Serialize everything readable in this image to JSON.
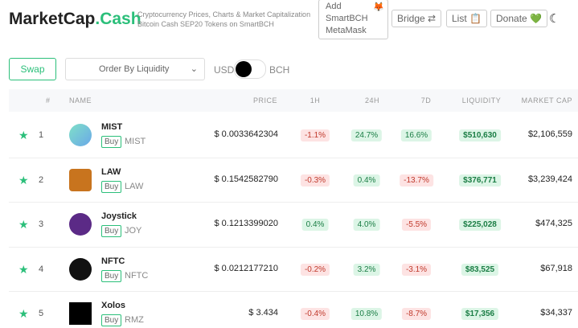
{
  "header": {
    "brand_main": "MarketCap",
    "brand_accent": ".Cash",
    "tagline_1": "Cryptocurrency Prices, Charts & Market Capitalization",
    "tagline_2": "Bitcoin Cash SEP20 Tokens on SmartBCH",
    "metamask": "Add SmartBCH MetaMask",
    "bridge": "Bridge",
    "list": "List",
    "donate": "Donate"
  },
  "toolbar": {
    "swap": "Swap",
    "order": "Order By Liquidity",
    "currency_left": "USD",
    "currency_right": "BCH"
  },
  "table": {
    "columns": [
      "#",
      "NAME",
      "PRICE",
      "1H",
      "24H",
      "7D",
      "LIQUIDITY",
      "MARKET CAP"
    ],
    "buy": "Buy",
    "rows": [
      {
        "rank": "1",
        "name": "MIST",
        "symbol": "MIST",
        "price": "$ 0.0033642304",
        "h1": "-1.1%",
        "h24": "24.7%",
        "d7": "16.6%",
        "liquidity": "$510,630",
        "market_cap": "$2,106,559"
      },
      {
        "rank": "2",
        "name": "LAW",
        "symbol": "LAW",
        "price": "$ 0.1542582790",
        "h1": "-0.3%",
        "h24": "0.4%",
        "d7": "-13.7%",
        "liquidity": "$376,771",
        "market_cap": "$3,239,424"
      },
      {
        "rank": "3",
        "name": "Joystick",
        "symbol": "JOY",
        "price": "$ 0.1213399020",
        "h1": "0.4%",
        "h24": "4.0%",
        "d7": "-5.5%",
        "liquidity": "$225,028",
        "market_cap": "$474,325"
      },
      {
        "rank": "4",
        "name": "NFTC",
        "symbol": "NFTC",
        "price": "$ 0.0212177210",
        "h1": "-0.2%",
        "h24": "3.2%",
        "d7": "-3.1%",
        "liquidity": "$83,525",
        "market_cap": "$67,918"
      },
      {
        "rank": "5",
        "name": "Xolos",
        "symbol": "RMZ",
        "price": "$ 3.434",
        "h1": "-0.4%",
        "h24": "10.8%",
        "d7": "-8.7%",
        "liquidity": "$17,356",
        "market_cap": "$34,337"
      }
    ]
  }
}
